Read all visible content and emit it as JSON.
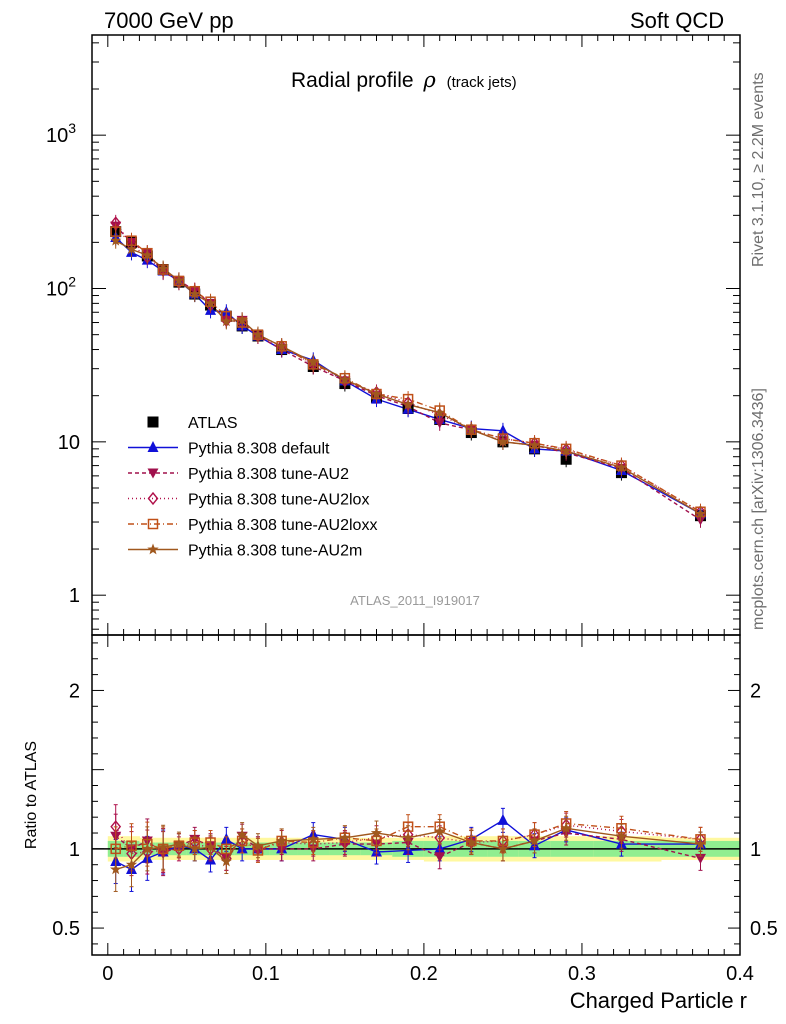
{
  "header": {
    "left": "7000 GeV pp",
    "right": "Soft QCD"
  },
  "side_labels": {
    "rivet": "Rivet 3.1.10, ≥ 2.2M events",
    "mcplots": "mcplots.cern.ch [arXiv:1306.3436]"
  },
  "analysis_id": "ATLAS_2011_I919017",
  "colors": {
    "atlas": "#000000",
    "default": "#1010d8",
    "au2": "#a0104c",
    "au2lox": "#b0104a",
    "au2loxx": "#c05018",
    "au2m": "#a0581e",
    "band_inner": "#90ee90",
    "band_outer": "#fff8a0"
  },
  "chart_data": [
    {
      "type": "line",
      "title": "Radial profile ρ (track jets)",
      "title_main": "Radial profile",
      "title_symbol": "ρ",
      "title_suffix": "(track jets)",
      "ylabel": "",
      "xlim": [
        -0.01,
        0.4
      ],
      "ylim": [
        0.55,
        4500
      ],
      "yscale": "log",
      "y_ticks": [
        "1",
        "10",
        "10^2",
        "10^3"
      ],
      "legend_position": "middle-left",
      "x": [
        0.005,
        0.015,
        0.025,
        0.035,
        0.045,
        0.055,
        0.065,
        0.075,
        0.085,
        0.095,
        0.11,
        0.13,
        0.15,
        0.17,
        0.19,
        0.21,
        0.23,
        0.25,
        0.27,
        0.29,
        0.325,
        0.375
      ],
      "series": [
        {
          "name": "ATLAS",
          "key": "atlas",
          "marker": "square",
          "dash": "none",
          "values": [
            235,
            200,
            163,
            133,
            110,
            92,
            78,
            66,
            57,
            49,
            40,
            31,
            24,
            19.5,
            16.5,
            14,
            11.5,
            10,
            9,
            7.7,
            6.3,
            3.3
          ]
        },
        {
          "name": "Pythia 8.308 default",
          "key": "default",
          "marker": "triangle-up",
          "dash": "none",
          "values": [
            215,
            172,
            153,
            130,
            112,
            92,
            72,
            70,
            57,
            49,
            40,
            34,
            25,
            19,
            16.3,
            14,
            12.2,
            11.8,
            9,
            8.7,
            6.5,
            3.4
          ]
        },
        {
          "name": "Pythia 8.308 tune-AU2",
          "key": "au2",
          "marker": "triangle-down",
          "dash": "4,3",
          "values": [
            255,
            200,
            170,
            128,
            113,
            97,
            80,
            62,
            62,
            49,
            40,
            31,
            25,
            20,
            17,
            13.3,
            12,
            10,
            9.5,
            8.5,
            6.7,
            3.1
          ]
        },
        {
          "name": "Pythia 8.308 tune-AU2lox",
          "key": "au2lox",
          "marker": "diamond",
          "dash": "1,3",
          "values": [
            268,
            193,
            160,
            132,
            110,
            96,
            78,
            62,
            60,
            49,
            42,
            32,
            25,
            21,
            18,
            15,
            12,
            10.5,
            9.8,
            8.9,
            7,
            3.5
          ]
        },
        {
          "name": "Pythia 8.308 tune-AU2loxx",
          "key": "au2loxx",
          "marker": "square-open",
          "dash": "6,3,1,3",
          "values": [
            235,
            205,
            170,
            133,
            112,
            96,
            82,
            66,
            60,
            50,
            42,
            32,
            26,
            20.5,
            19,
            16,
            12,
            10.5,
            9.8,
            9,
            7,
            3.5
          ]
        },
        {
          "name": "Pythia 8.308 tune-AU2m",
          "key": "au2m",
          "marker": "star",
          "dash": "none",
          "values": [
            205,
            180,
            165,
            135,
            113,
            92,
            80,
            61,
            62,
            50,
            42,
            33,
            25.5,
            20.5,
            17.5,
            15.5,
            12,
            10,
            9.5,
            8.7,
            6.8,
            3.4
          ]
        }
      ]
    },
    {
      "type": "line",
      "title": "",
      "ylabel": "Ratio to ATLAS",
      "xlabel": "Charged Particle r",
      "xlim": [
        -0.01,
        0.4
      ],
      "ylim": [
        0.33,
        2.35
      ],
      "x_ticks": [
        "0",
        "0.1",
        "0.2",
        "0.3",
        "0.4"
      ],
      "y_ticks": [
        "0.5",
        "1",
        "2"
      ],
      "x": [
        0.005,
        0.015,
        0.025,
        0.035,
        0.045,
        0.055,
        0.065,
        0.075,
        0.085,
        0.095,
        0.11,
        0.13,
        0.15,
        0.17,
        0.19,
        0.21,
        0.23,
        0.25,
        0.27,
        0.29,
        0.325,
        0.375
      ],
      "band_inner": [
        0.05,
        0.05,
        0.04,
        0.04,
        0.04,
        0.04,
        0.04,
        0.04,
        0.04,
        0.04,
        0.04,
        0.04,
        0.04,
        0.04,
        0.05,
        0.05,
        0.05,
        0.05,
        0.05,
        0.05,
        0.05,
        0.05
      ],
      "band_outer": [
        0.08,
        0.08,
        0.07,
        0.07,
        0.07,
        0.07,
        0.07,
        0.07,
        0.07,
        0.07,
        0.07,
        0.07,
        0.07,
        0.07,
        0.07,
        0.08,
        0.08,
        0.08,
        0.08,
        0.08,
        0.08,
        0.07
      ],
      "series": [
        {
          "name": "Pythia 8.308 default",
          "key": "default",
          "marker": "triangle-up",
          "dash": "none",
          "values": [
            0.92,
            0.87,
            0.94,
            0.98,
            1.02,
            1.0,
            0.93,
            1.06,
            1.0,
            1.0,
            1.0,
            1.09,
            1.06,
            0.98,
            0.99,
            1.0,
            1.06,
            1.18,
            1.02,
            1.12,
            1.03,
            1.03
          ]
        },
        {
          "name": "Pythia 8.308 tune-AU2",
          "key": "au2",
          "marker": "triangle-down",
          "dash": "4,3",
          "values": [
            1.08,
            1.0,
            1.05,
            0.97,
            1.02,
            1.06,
            1.02,
            0.94,
            1.08,
            1.0,
            1.0,
            1.0,
            1.03,
            1.03,
            1.04,
            0.95,
            1.04,
            1.0,
            1.05,
            1.1,
            1.06,
            0.94
          ]
        },
        {
          "name": "Pythia 8.308 tune-AU2lox",
          "key": "au2lox",
          "marker": "diamond",
          "dash": "1,3",
          "values": [
            1.14,
            0.97,
            0.98,
            0.99,
            1.0,
            1.04,
            1.0,
            0.94,
            1.05,
            1.0,
            1.04,
            1.03,
            1.04,
            1.07,
            1.09,
            1.07,
            1.04,
            1.05,
            1.09,
            1.15,
            1.11,
            1.06
          ]
        },
        {
          "name": "Pythia 8.308 tune-AU2loxx",
          "key": "au2loxx",
          "marker": "square-open",
          "dash": "6,3,1,3",
          "values": [
            1.0,
            1.02,
            1.03,
            1.0,
            1.02,
            1.04,
            1.04,
            1.0,
            1.05,
            0.99,
            1.05,
            1.04,
            1.07,
            1.05,
            1.14,
            1.14,
            1.05,
            1.05,
            1.09,
            1.16,
            1.13,
            1.06
          ]
        },
        {
          "name": "Pythia 8.308 tune-AU2m",
          "key": "au2m",
          "marker": "star",
          "dash": "none",
          "values": [
            0.87,
            0.9,
            1.0,
            1.01,
            1.03,
            1.0,
            1.01,
            0.92,
            1.09,
            1.02,
            1.05,
            1.06,
            1.07,
            1.1,
            1.07,
            1.11,
            1.04,
            1.0,
            1.05,
            1.13,
            1.08,
            1.03
          ]
        }
      ]
    }
  ]
}
